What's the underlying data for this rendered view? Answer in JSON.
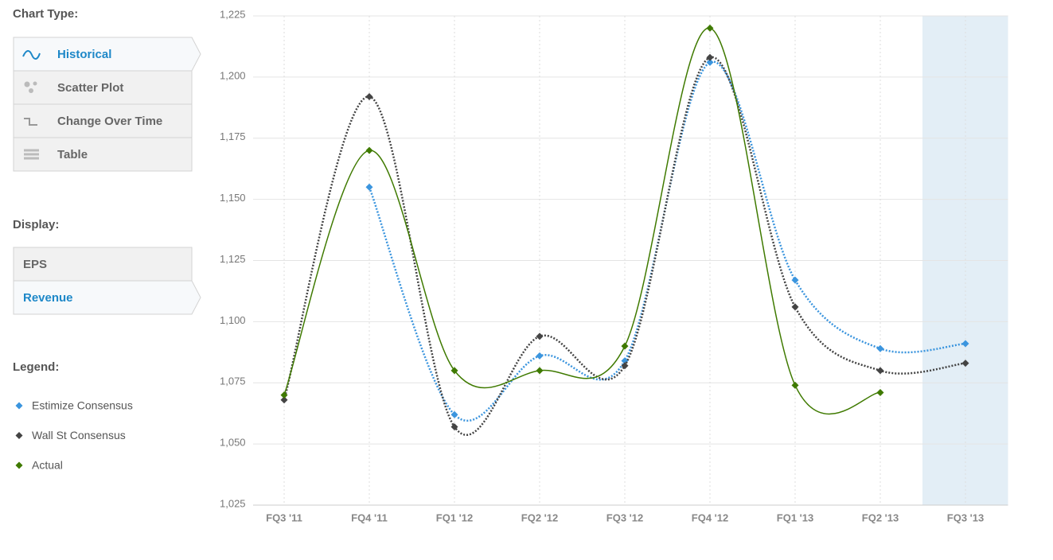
{
  "sidebar": {
    "chart_type_heading": "Chart Type:",
    "chart_types": [
      "Historical",
      "Scatter Plot",
      "Change Over Time",
      "Table"
    ],
    "display_heading": "Display:",
    "display_options": [
      "EPS",
      "Revenue"
    ],
    "legend_heading": "Legend:"
  },
  "chart_data": {
    "type": "line",
    "categories": [
      "FQ3 '11",
      "FQ4 '11",
      "FQ1 '12",
      "FQ2 '12",
      "FQ3 '12",
      "FQ4 '12",
      "FQ1 '13",
      "FQ2 '13",
      "FQ3 '13"
    ],
    "series": [
      {
        "name": "Estimize Consensus",
        "color": "#3b95de",
        "dash": true,
        "values": [
          null,
          1155,
          1062,
          1086,
          1084,
          1206,
          1117,
          1089,
          1091
        ]
      },
      {
        "name": "Wall St Consensus",
        "color": "#444444",
        "dash": true,
        "values": [
          1068,
          1192,
          1057,
          1094,
          1082,
          1208,
          1106,
          1080,
          1083
        ]
      },
      {
        "name": "Actual",
        "color": "#3f7a00",
        "dash": false,
        "values": [
          1070,
          1170,
          1080,
          1080,
          1090,
          1220,
          1074,
          1071,
          null
        ]
      }
    ],
    "ylim": [
      1025,
      1225
    ],
    "yticks": [
      {
        "value": 1025,
        "label": "1,025"
      },
      {
        "value": 1050,
        "label": "1,050"
      },
      {
        "value": 1075,
        "label": "1,075"
      },
      {
        "value": 1100,
        "label": "1,100"
      },
      {
        "value": 1125,
        "label": "1,125"
      },
      {
        "value": 1150,
        "label": "1,150"
      },
      {
        "value": 1175,
        "label": "1,175"
      },
      {
        "value": 1200,
        "label": "1,200"
      },
      {
        "value": 1225,
        "label": "1,225"
      }
    ],
    "grid": true
  }
}
